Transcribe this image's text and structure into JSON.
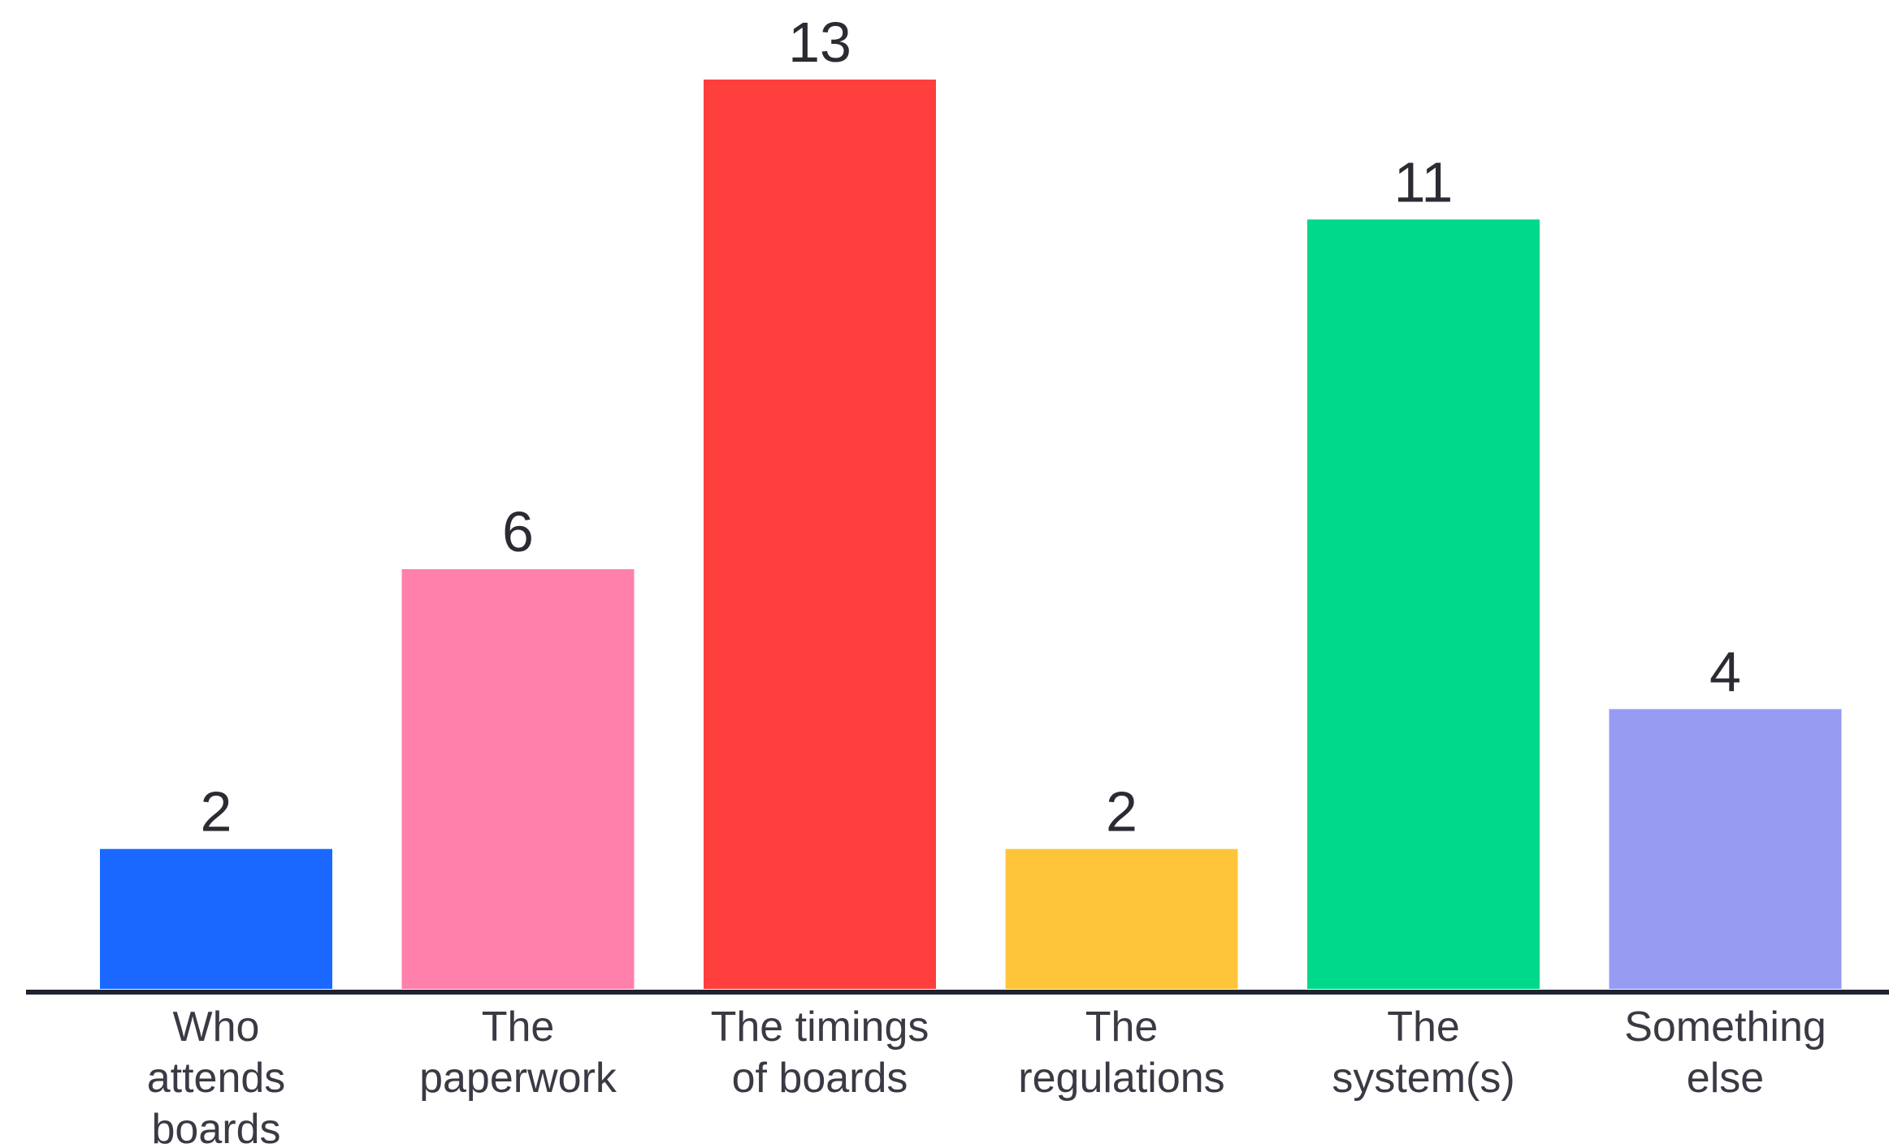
{
  "chart_data": {
    "type": "bar",
    "title": "",
    "xlabel": "",
    "ylabel": "",
    "ylim": [
      0,
      13
    ],
    "grid": false,
    "categories": [
      "Who attends boards",
      "The paperwork",
      "The timings of boards",
      "The regulations",
      "The system(s)",
      "Something else"
    ],
    "category_lines": [
      [
        "Who",
        "attends",
        "boards"
      ],
      [
        "The",
        "paperwork"
      ],
      [
        "The timings",
        "of boards"
      ],
      [
        "The",
        "regulations"
      ],
      [
        "The",
        "system(s)"
      ],
      [
        "Something",
        "else"
      ]
    ],
    "values": [
      2,
      6,
      13,
      2,
      11,
      4
    ],
    "colors": [
      "#1A68FF",
      "#FF80AA",
      "#FF3F3D",
      "#FFC53A",
      "#00D98C",
      "#979CF2"
    ],
    "axis_color": "#1f2230"
  }
}
